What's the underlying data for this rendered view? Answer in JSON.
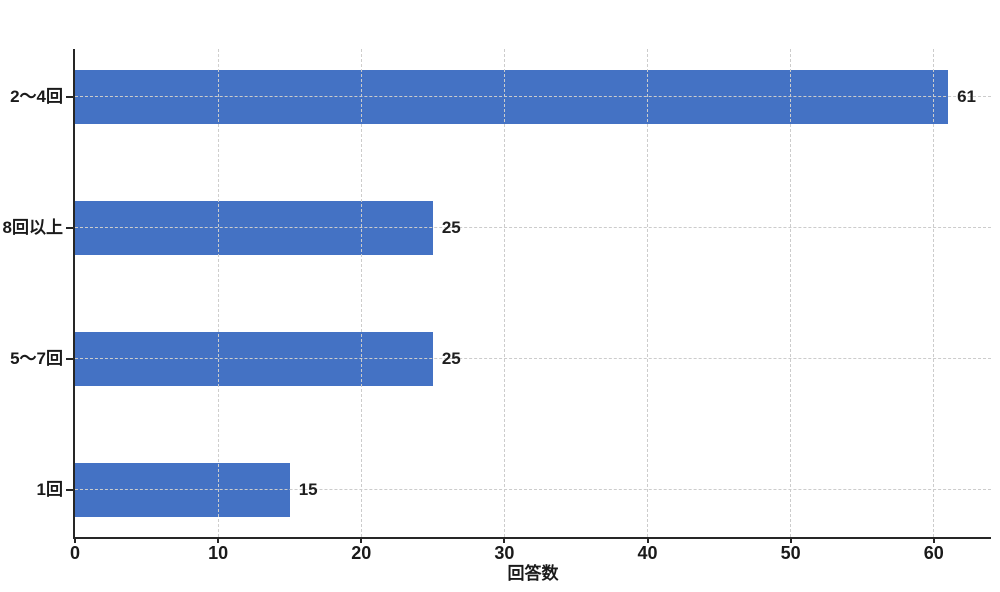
{
  "chart_data": {
    "type": "bar",
    "orientation": "horizontal",
    "title": "",
    "categories": [
      "2〜4回",
      "8回以上",
      "5〜7回",
      "1回"
    ],
    "values": [
      61,
      25,
      25,
      15
    ],
    "value_labels": [
      "61",
      "25",
      "25",
      "15"
    ],
    "xlabel": "回答数",
    "ylabel": "",
    "xticks": [
      0,
      10,
      20,
      30,
      40,
      50,
      60
    ],
    "xtick_labels": [
      "0",
      "10",
      "20",
      "30",
      "40",
      "50",
      "60"
    ],
    "xlim": [
      0,
      64
    ],
    "grid": true,
    "grid_style": "dashed",
    "legend": "none",
    "colors": {
      "bar": "#4472C4",
      "gridline": "#cccccc",
      "axis": "#262626",
      "text": "#1a1a1a"
    }
  }
}
